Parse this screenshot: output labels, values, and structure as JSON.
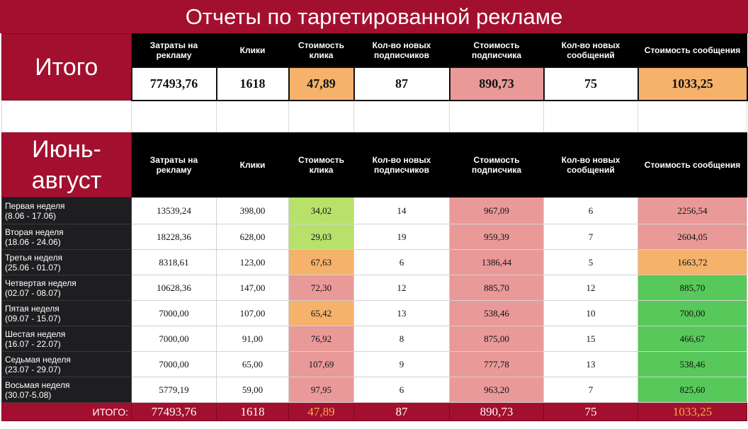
{
  "title": "Отчеты по таргетированной рекламе",
  "colors": {
    "crimson": "#a3102f",
    "orange": "#f5b26b",
    "pink": "#ea9999",
    "light_green": "#b7e16b",
    "green": "#57c85a",
    "header_black": "#000000"
  },
  "summary": {
    "label": "Итого",
    "headers": [
      "Затраты на рекламу",
      "Клики",
      "Стоимость клика",
      "Кол-во новых подписчиков",
      "Стоимость подписчика",
      "Кол-во новых сообщений",
      "Стоимость сообщения"
    ],
    "values": [
      "77493,76",
      "1618",
      "47,89",
      "87",
      "890,73",
      "75",
      "1033,25"
    ],
    "fills": [
      "#ffffff",
      "#ffffff",
      "#f5b26b",
      "#ffffff",
      "#ea9999",
      "#ffffff",
      "#f5b26b"
    ]
  },
  "period": {
    "label_line1": "Июнь-",
    "label_line2": "август",
    "headers": [
      "Затраты на рекламу",
      "Клики",
      "Стоимость клика",
      "Кол-во новых подписчиков",
      "Стоимость подписчика",
      "Кол-во новых сообщений",
      "Стоимость сообщения"
    ]
  },
  "weeks": [
    {
      "name": "Первая неделя",
      "dates": "(8.06 - 17.06)",
      "cells": [
        "13539,24",
        "398,00",
        "34,02",
        "14",
        "967,09",
        "6",
        "2256,54"
      ],
      "fills": [
        "#fff",
        "#fff",
        "#b7e16b",
        "#fff",
        "#ea9999",
        "#fff",
        "#ea9999"
      ]
    },
    {
      "name": "Вторая неделя",
      "dates": "(18.06 - 24.06)",
      "cells": [
        "18228,36",
        "628,00",
        "29,03",
        "19",
        "959,39",
        "7",
        "2604,05"
      ],
      "fills": [
        "#fff",
        "#fff",
        "#b7e16b",
        "#fff",
        "#ea9999",
        "#fff",
        "#ea9999"
      ]
    },
    {
      "name": "Третья неделя",
      "dates": "(25.06 - 01.07)",
      "cells": [
        "8318,61",
        "123,00",
        "67,63",
        "6",
        "1386,44",
        "5",
        "1663,72"
      ],
      "fills": [
        "#fff",
        "#fff",
        "#f5b26b",
        "#fff",
        "#ea9999",
        "#fff",
        "#f5b26b"
      ]
    },
    {
      "name": "Четвертая неделя",
      "dates": "(02.07 - 08.07)",
      "cells": [
        "10628,36",
        "147,00",
        "72,30",
        "12",
        "885,70",
        "12",
        "885,70"
      ],
      "fills": [
        "#fff",
        "#fff",
        "#ea9999",
        "#fff",
        "#ea9999",
        "#fff",
        "#57c85a"
      ]
    },
    {
      "name": "Пятая неделя",
      "dates": "(09.07 - 15.07)",
      "cells": [
        "7000,00",
        "107,00",
        "65,42",
        "13",
        "538,46",
        "10",
        "700,00"
      ],
      "fills": [
        "#fff",
        "#fff",
        "#f5b26b",
        "#fff",
        "#ea9999",
        "#fff",
        "#57c85a"
      ]
    },
    {
      "name": "Шестая неделя",
      "dates": "(16.07 - 22.07)",
      "cells": [
        "7000,00",
        "91,00",
        "76,92",
        "8",
        "875,00",
        "15",
        "466,67"
      ],
      "fills": [
        "#fff",
        "#fff",
        "#ea9999",
        "#fff",
        "#ea9999",
        "#fff",
        "#57c85a"
      ]
    },
    {
      "name": "Седьмая неделя",
      "dates": "(23.07 - 29.07)",
      "cells": [
        "7000,00",
        "65,00",
        "107,69",
        "9",
        "777,78",
        "13",
        "538,46"
      ],
      "fills": [
        "#fff",
        "#fff",
        "#ea9999",
        "#fff",
        "#ea9999",
        "#fff",
        "#57c85a"
      ]
    },
    {
      "name": "Восьмая неделя",
      "dates": "(30.07-5.08)",
      "cells": [
        "5779,19",
        "59,00",
        "97,95",
        "6",
        "963,20",
        "7",
        "825,60"
      ],
      "fills": [
        "#fff",
        "#fff",
        "#ea9999",
        "#fff",
        "#ea9999",
        "#fff",
        "#57c85a"
      ]
    }
  ],
  "footer": {
    "label": "ИТОГО:",
    "values": [
      "77493,76",
      "1618",
      "47,89",
      "87",
      "890,73",
      "75",
      "1033,25"
    ],
    "highlight": [
      false,
      false,
      true,
      false,
      false,
      false,
      true
    ]
  }
}
